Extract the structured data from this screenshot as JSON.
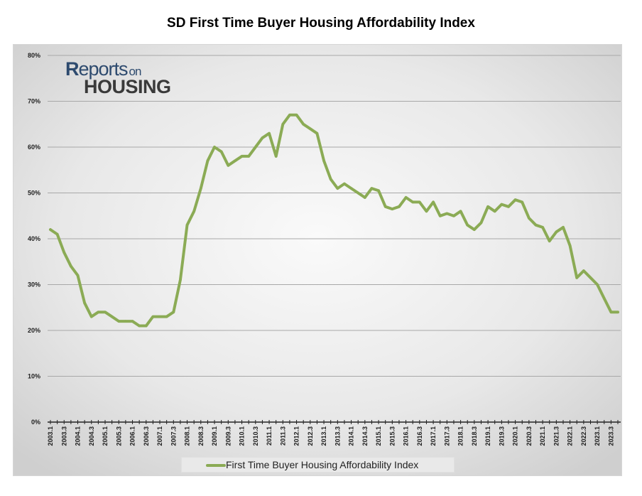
{
  "chart_data": {
    "type": "line",
    "title": "SD First Time Buyer Housing Affordability Index",
    "xlabel": "",
    "ylabel": "",
    "ylim": [
      0,
      80
    ],
    "yticks": [
      "0%",
      "10%",
      "20%",
      "30%",
      "40%",
      "50%",
      "60%",
      "70%",
      "80%"
    ],
    "grid": true,
    "legend_position": "bottom",
    "line_color": "#8bab55",
    "xticklabels": [
      "2003.1",
      "2003.3",
      "2004.1",
      "2004.3",
      "2005.1",
      "2005.3",
      "2006.1",
      "2006.3",
      "2007.1",
      "2007.3",
      "2008.1",
      "2008.3",
      "2009.1",
      "2009.3",
      "2010.1",
      "2010.3",
      "2011.1",
      "2011.3",
      "2012.1",
      "2012.3",
      "2013.1",
      "2013.3",
      "2014.1",
      "2014.3",
      "2015.1",
      "2015.3",
      "2016.1",
      "2016.3",
      "2017.1",
      "2017.3",
      "2018.1",
      "2018.3",
      "2019.1",
      "2019.3",
      "2020.1",
      "2020.3",
      "2021.1",
      "2021.3",
      "2022.1",
      "2022.3",
      "2023.1",
      "2023.3"
    ],
    "series": [
      {
        "name": "First Time Buyer Housing Affordability Index",
        "values": [
          42,
          41,
          37,
          34,
          32,
          26,
          23,
          24,
          24,
          23,
          22,
          22,
          22,
          21,
          21,
          23,
          23,
          23,
          24,
          31,
          43,
          46,
          51,
          57,
          60,
          59,
          56,
          57,
          58,
          58,
          60,
          62,
          63,
          58,
          65,
          67,
          67,
          65,
          64,
          63,
          57,
          53,
          51,
          52,
          51,
          50,
          49,
          51,
          50.5,
          47,
          46.5,
          47,
          49,
          48,
          48,
          46,
          48,
          45,
          45.5,
          45,
          46,
          43,
          42,
          43.5,
          47,
          46,
          47.5,
          47,
          48.5,
          48,
          44.5,
          43,
          42.5,
          39.5,
          41.5,
          42.5,
          38.5,
          31.5,
          33,
          31.5,
          30,
          27,
          24,
          24
        ]
      }
    ]
  },
  "logo": {
    "line1_big": "R",
    "line1_rest": "eports",
    "line1_on": "on",
    "line2": "HOUSING"
  }
}
